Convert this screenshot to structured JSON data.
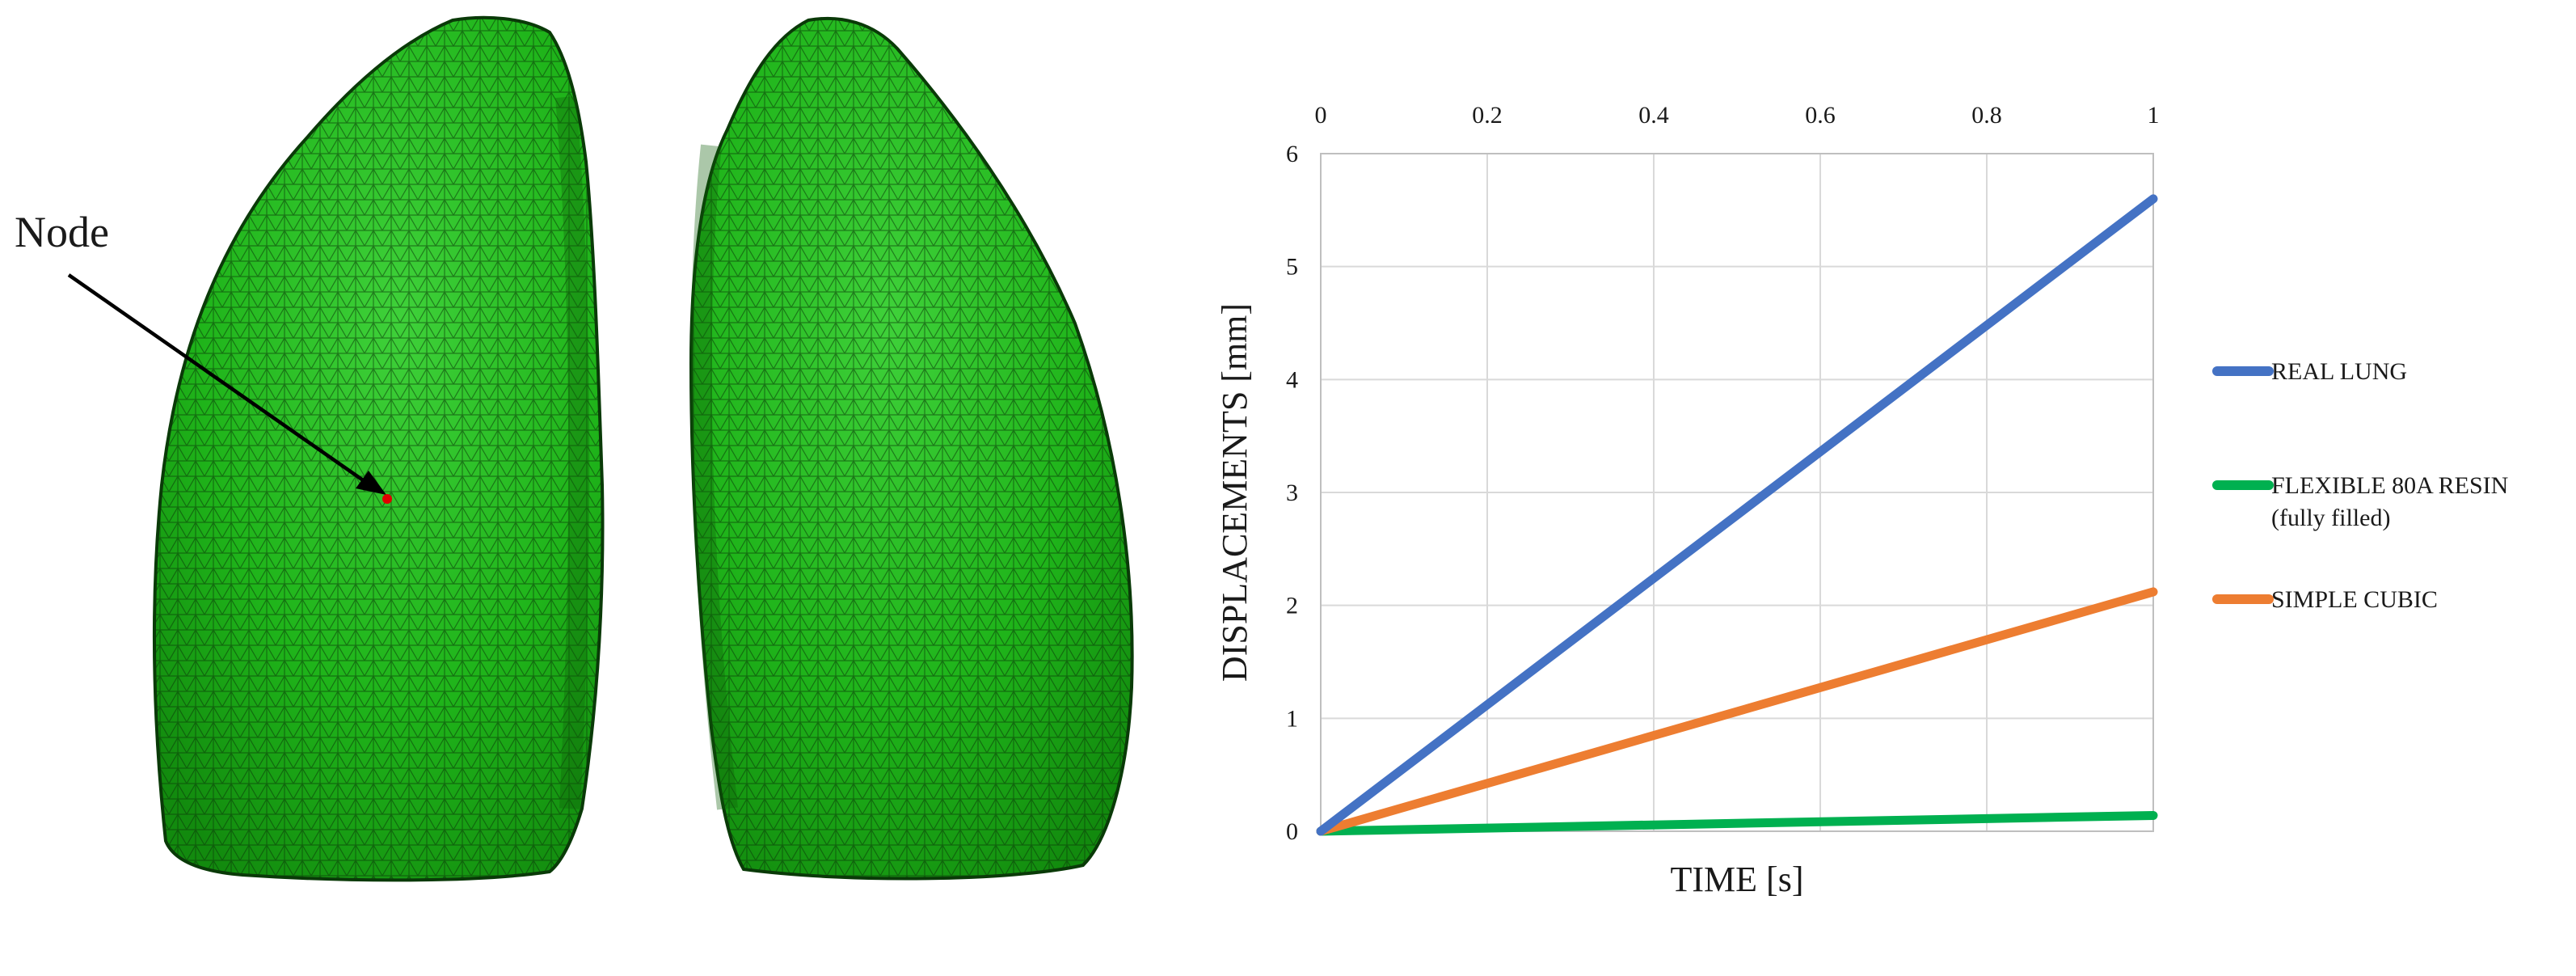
{
  "figure": {
    "node_label": "Node",
    "colors": {
      "mesh_fill": "#1fb41a",
      "mesh_shade": "#15860f",
      "mesh_line": "#0a3a08",
      "node_marker": "#e00000"
    },
    "models": [
      "left-lung-mesh",
      "right-lung-mesh"
    ]
  },
  "chart_data": {
    "type": "line",
    "title": "",
    "xlabel": "TIME [s]",
    "ylabel": "DISPLACEMENTS [mm]",
    "xlim": [
      0,
      1
    ],
    "ylim": [
      0,
      6
    ],
    "x_ticks": [
      "0",
      "0.2",
      "0.4",
      "0.6",
      "0.8",
      "1"
    ],
    "y_ticks": [
      "0",
      "1",
      "2",
      "3",
      "4",
      "5",
      "6"
    ],
    "x_tick_values": [
      0,
      0.2,
      0.4,
      0.6,
      0.8,
      1
    ],
    "y_tick_values": [
      0,
      1,
      2,
      3,
      4,
      5,
      6
    ],
    "grid": true,
    "x_axis_position": "top",
    "legend_position": "right",
    "x": [
      0,
      1
    ],
    "series": [
      {
        "name": "REAL LUNG",
        "label_lines": [
          "REAL LUNG"
        ],
        "color": "#4472c4",
        "values": [
          0,
          5.6
        ]
      },
      {
        "name": "FLEXIBLE 80A RESIN (fully filled)",
        "label_lines": [
          "FLEXIBLE 80A RESIN",
          "(fully filled)"
        ],
        "color": "#00b050",
        "values": [
          0,
          0.14
        ]
      },
      {
        "name": "SIMPLE CUBIC",
        "label_lines": [
          "SIMPLE CUBIC"
        ],
        "color": "#ed7d31",
        "values": [
          0,
          2.12
        ]
      }
    ]
  }
}
